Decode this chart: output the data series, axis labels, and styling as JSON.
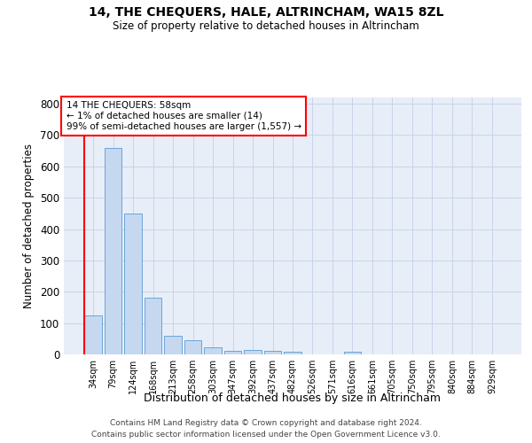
{
  "title1": "14, THE CHEQUERS, HALE, ALTRINCHAM, WA15 8ZL",
  "title2": "Size of property relative to detached houses in Altrincham",
  "xlabel": "Distribution of detached houses by size in Altrincham",
  "ylabel": "Number of detached properties",
  "categories": [
    "34sqm",
    "79sqm",
    "124sqm",
    "168sqm",
    "213sqm",
    "258sqm",
    "303sqm",
    "347sqm",
    "392sqm",
    "437sqm",
    "482sqm",
    "526sqm",
    "571sqm",
    "616sqm",
    "661sqm",
    "705sqm",
    "750sqm",
    "795sqm",
    "840sqm",
    "884sqm",
    "929sqm"
  ],
  "values": [
    125,
    660,
    450,
    180,
    60,
    45,
    22,
    12,
    15,
    10,
    8,
    0,
    0,
    8,
    0,
    0,
    0,
    0,
    0,
    0,
    0
  ],
  "bar_color": "#c5d8f0",
  "bar_edge_color": "#5b9bd5",
  "annotation_box_text": "14 THE CHEQUERS: 58sqm\n← 1% of detached houses are smaller (14)\n99% of semi-detached houses are larger (1,557) →",
  "ylim": [
    0,
    820
  ],
  "yticks": [
    0,
    100,
    200,
    300,
    400,
    500,
    600,
    700,
    800
  ],
  "grid_color": "#c8d4e8",
  "bg_color": "#e8eef8",
  "footer1": "Contains HM Land Registry data © Crown copyright and database right 2024.",
  "footer2": "Contains public sector information licensed under the Open Government Licence v3.0."
}
